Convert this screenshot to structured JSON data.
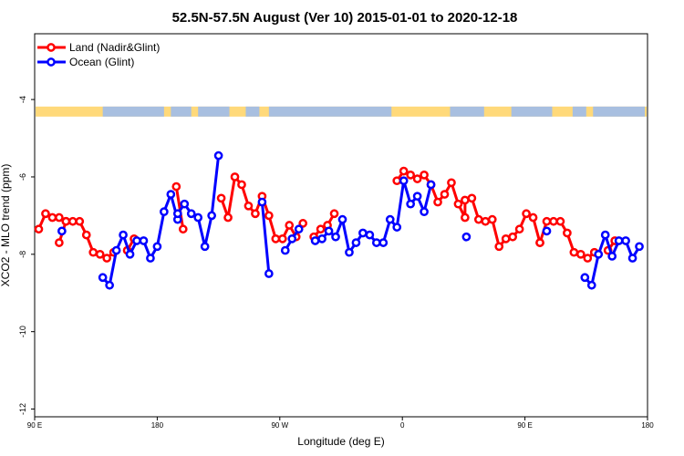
{
  "chart_data": {
    "type": "line",
    "title": "52.5N-57.5N August (Ver 10)   2015-01-01 to 2020-12-18",
    "xlabel": "Longitude (deg E)",
    "ylabel": "XCO2 - MLO trend (ppm)",
    "xlim": [
      90,
      540
    ],
    "ylim": [
      -12.2,
      -2.3
    ],
    "x_ticks": [
      {
        "value": 90,
        "label": "90 E"
      },
      {
        "value": 180,
        "label": "180"
      },
      {
        "value": 270,
        "label": "90 W"
      },
      {
        "value": 360,
        "label": "0"
      },
      {
        "value": 450,
        "label": "90 E"
      },
      {
        "value": 540,
        "label": "180"
      }
    ],
    "y_ticks": [
      {
        "value": -4,
        "label": "-4"
      },
      {
        "value": -6,
        "label": "-6"
      },
      {
        "value": -8,
        "label": "-8"
      },
      {
        "value": -10,
        "label": "-10"
      },
      {
        "value": -12,
        "label": "-12"
      }
    ],
    "map_strip": {
      "y_center": -4.3,
      "land_color": "#ffd97a",
      "ocean_color": "#a8bfe0"
    },
    "legend": {
      "placement": "top-left",
      "entries": [
        {
          "label": "Land (Nadir&Glint)",
          "color": "#ff0000"
        },
        {
          "label": "Ocean (Glint)",
          "color": "#0000ff"
        }
      ]
    },
    "series": [
      {
        "name": "Land (Nadir&Glint)",
        "color": "#ff0000",
        "segments": [
          [
            [
              93,
              -7.35
            ],
            [
              98,
              -6.95
            ],
            [
              103,
              -7.05
            ],
            [
              108,
              -7.05
            ],
            [
              113,
              -7.15
            ]
          ],
          [
            [
              108,
              -7.7
            ],
            [
              113,
              -7.15
            ],
            [
              118,
              -7.15
            ],
            [
              123,
              -7.15
            ],
            [
              128,
              -7.5
            ],
            [
              133,
              -7.95
            ],
            [
              138,
              -8.0
            ],
            [
              143,
              -8.1
            ],
            [
              148,
              -7.95
            ]
          ],
          [
            [
              158,
              -7.9
            ],
            [
              163,
              -7.6
            ]
          ],
          [
            [
              194,
              -6.25
            ],
            [
              199,
              -7.35
            ]
          ],
          [
            [
              227,
              -6.55
            ],
            [
              232,
              -7.05
            ],
            [
              237,
              -6.0
            ],
            [
              242,
              -6.2
            ],
            [
              247,
              -6.75
            ],
            [
              252,
              -6.95
            ],
            [
              257,
              -6.5
            ],
            [
              262,
              -7.0
            ],
            [
              267,
              -7.6
            ],
            [
              272,
              -7.6
            ],
            [
              277,
              -7.25
            ],
            [
              282,
              -7.55
            ],
            [
              287,
              -7.2
            ]
          ],
          [
            [
              295,
              -7.55
            ],
            [
              300,
              -7.35
            ],
            [
              305,
              -7.25
            ],
            [
              310,
              -6.95
            ]
          ],
          [
            [
              356,
              -6.1
            ],
            [
              361,
              -5.85
            ],
            [
              366,
              -5.95
            ],
            [
              371,
              -6.05
            ],
            [
              376,
              -5.95
            ],
            [
              381,
              -6.2
            ],
            [
              386,
              -6.65
            ],
            [
              391,
              -6.45
            ],
            [
              396,
              -6.15
            ],
            [
              401,
              -6.7
            ],
            [
              406,
              -7.05
            ],
            [
              406,
              -6.6
            ],
            [
              411,
              -6.55
            ],
            [
              416,
              -7.1
            ],
            [
              421,
              -7.15
            ],
            [
              426,
              -7.1
            ],
            [
              431,
              -7.8
            ],
            [
              436,
              -7.6
            ],
            [
              441,
              -7.55
            ],
            [
              446,
              -7.35
            ],
            [
              451,
              -6.95
            ],
            [
              456,
              -7.05
            ],
            [
              461,
              -7.7
            ]
          ],
          [
            [
              461,
              -7.7
            ],
            [
              466,
              -7.15
            ],
            [
              471,
              -7.15
            ],
            [
              476,
              -7.15
            ],
            [
              481,
              -7.45
            ],
            [
              486,
              -7.95
            ],
            [
              491,
              -8.0
            ],
            [
              496,
              -8.1
            ],
            [
              501,
              -7.95
            ]
          ],
          [
            [
              511,
              -7.9
            ],
            [
              516,
              -7.65
            ]
          ]
        ]
      },
      {
        "name": "Ocean (Glint)",
        "color": "#0000ff",
        "segments": [
          [
            [
              110,
              -7.4
            ]
          ],
          [
            [
              140,
              -8.6
            ],
            [
              145,
              -8.8
            ],
            [
              150,
              -7.9
            ],
            [
              155,
              -7.5
            ],
            [
              160,
              -8.0
            ],
            [
              165,
              -7.65
            ],
            [
              170,
              -7.65
            ],
            [
              175,
              -8.1
            ],
            [
              180,
              -7.8
            ],
            [
              185,
              -6.9
            ],
            [
              190,
              -6.45
            ],
            [
              195,
              -7.1
            ],
            [
              195,
              -6.95
            ],
            [
              200,
              -6.7
            ],
            [
              205,
              -6.95
            ],
            [
              210,
              -7.05
            ],
            [
              215,
              -7.8
            ],
            [
              220,
              -7.0
            ],
            [
              225,
              -5.45
            ]
          ],
          [
            [
              257,
              -6.65
            ],
            [
              262,
              -8.5
            ]
          ],
          [
            [
              274,
              -7.9
            ],
            [
              279,
              -7.6
            ],
            [
              284,
              -7.35
            ]
          ],
          [
            [
              296,
              -7.65
            ],
            [
              301,
              -7.6
            ],
            [
              306,
              -7.4
            ],
            [
              311,
              -7.55
            ],
            [
              316,
              -7.1
            ],
            [
              321,
              -7.95
            ],
            [
              326,
              -7.7
            ],
            [
              331,
              -7.45
            ],
            [
              336,
              -7.5
            ],
            [
              341,
              -7.7
            ],
            [
              346,
              -7.7
            ],
            [
              351,
              -7.1
            ],
            [
              356,
              -7.3
            ],
            [
              361,
              -6.1
            ],
            [
              366,
              -6.7
            ],
            [
              371,
              -6.5
            ],
            [
              376,
              -6.9
            ],
            [
              381,
              -6.2
            ]
          ],
          [
            [
              407,
              -7.55
            ]
          ],
          [
            [
              466,
              -7.4
            ]
          ],
          [
            [
              494,
              -8.6
            ],
            [
              499,
              -8.8
            ],
            [
              504,
              -8.0
            ],
            [
              509,
              -7.5
            ],
            [
              514,
              -8.05
            ],
            [
              519,
              -7.65
            ],
            [
              524,
              -7.65
            ],
            [
              529,
              -8.1
            ],
            [
              534,
              -7.8
            ]
          ]
        ]
      }
    ]
  }
}
